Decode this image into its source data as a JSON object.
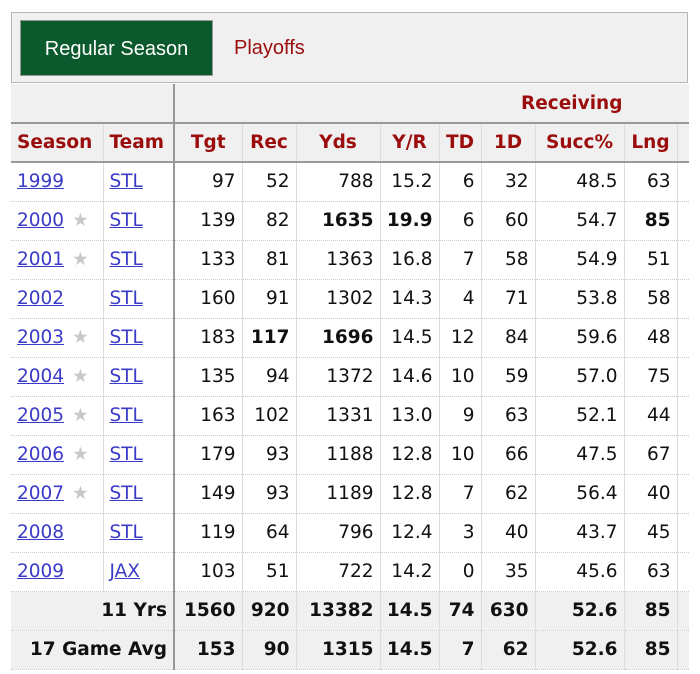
{
  "tabs": {
    "regular": "Regular Season",
    "playoffs": "Playoffs"
  },
  "group_header": "Receiving",
  "columns": [
    "Season",
    "Team",
    "Tgt",
    "Rec",
    "Yds",
    "Y/R",
    "TD",
    "1D",
    "Succ%",
    "Lng"
  ],
  "rows": [
    {
      "season": "1999",
      "star": false,
      "team": "STL",
      "vals": [
        "97",
        "52",
        "788",
        "15.2",
        "6",
        "32",
        "48.5",
        "63"
      ],
      "bold": []
    },
    {
      "season": "2000",
      "star": true,
      "team": "STL",
      "vals": [
        "139",
        "82",
        "1635",
        "19.9",
        "6",
        "60",
        "54.7",
        "85"
      ],
      "bold": [
        2,
        3,
        7
      ]
    },
    {
      "season": "2001",
      "star": true,
      "team": "STL",
      "vals": [
        "133",
        "81",
        "1363",
        "16.8",
        "7",
        "58",
        "54.9",
        "51"
      ],
      "bold": []
    },
    {
      "season": "2002",
      "star": false,
      "team": "STL",
      "vals": [
        "160",
        "91",
        "1302",
        "14.3",
        "4",
        "71",
        "53.8",
        "58"
      ],
      "bold": []
    },
    {
      "season": "2003",
      "star": true,
      "team": "STL",
      "vals": [
        "183",
        "117",
        "1696",
        "14.5",
        "12",
        "84",
        "59.6",
        "48"
      ],
      "bold": [
        1,
        2
      ]
    },
    {
      "season": "2004",
      "star": true,
      "team": "STL",
      "vals": [
        "135",
        "94",
        "1372",
        "14.6",
        "10",
        "59",
        "57.0",
        "75"
      ],
      "bold": []
    },
    {
      "season": "2005",
      "star": true,
      "team": "STL",
      "vals": [
        "163",
        "102",
        "1331",
        "13.0",
        "9",
        "63",
        "52.1",
        "44"
      ],
      "bold": []
    },
    {
      "season": "2006",
      "star": true,
      "team": "STL",
      "vals": [
        "179",
        "93",
        "1188",
        "12.8",
        "10",
        "66",
        "47.5",
        "67"
      ],
      "bold": []
    },
    {
      "season": "2007",
      "star": true,
      "team": "STL",
      "vals": [
        "149",
        "93",
        "1189",
        "12.8",
        "7",
        "62",
        "56.4",
        "40"
      ],
      "bold": []
    },
    {
      "season": "2008",
      "star": false,
      "team": "STL",
      "vals": [
        "119",
        "64",
        "796",
        "12.4",
        "3",
        "40",
        "43.7",
        "45"
      ],
      "bold": []
    },
    {
      "season": "2009",
      "star": false,
      "team": "JAX",
      "vals": [
        "103",
        "51",
        "722",
        "14.2",
        "0",
        "35",
        "45.6",
        "63"
      ],
      "bold": []
    }
  ],
  "footer": [
    {
      "label": "11 Yrs",
      "vals": [
        "1560",
        "920",
        "13382",
        "14.5",
        "74",
        "630",
        "52.6",
        "85"
      ]
    },
    {
      "label": "17 Game Avg",
      "vals": [
        "153",
        "90",
        "1315",
        "14.5",
        "7",
        "62",
        "52.6",
        "85"
      ]
    }
  ],
  "star_icon": "star-icon"
}
